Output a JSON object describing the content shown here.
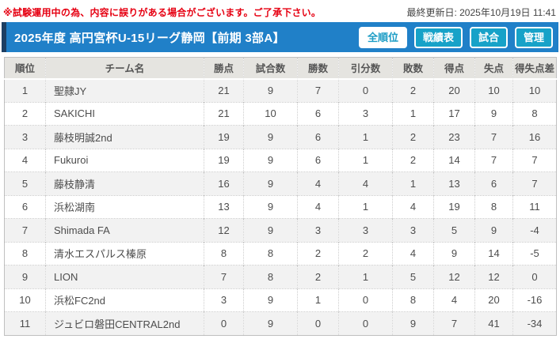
{
  "notice": {
    "text": "※試験運用中の為、内容に誤りがある場合がございます。ご了承下さい。"
  },
  "last_updated": {
    "label": "最終更新日: 2025年10月19日 11:41"
  },
  "header": {
    "title": "2025年度 高円宮杯U-15リーグ静岡【前期 3部A】",
    "buttons": [
      {
        "label": "全順位",
        "active": true
      },
      {
        "label": "戦績表",
        "active": false
      },
      {
        "label": "試合",
        "active": false
      },
      {
        "label": "管理",
        "active": false
      }
    ]
  },
  "colors": {
    "title_bar": "#2080c8",
    "title_bar_accent": "#1c3f63",
    "button_bg": "#17a2c8",
    "active_button_text": "#1b9cc5",
    "notice_red": "#e60012",
    "header_row_bg": "#e5e4e0",
    "stripe_row_bg": "#f2f2f2"
  },
  "table": {
    "columns": [
      "順位",
      "チーム名",
      "勝点",
      "試合数",
      "勝数",
      "引分数",
      "敗数",
      "得点",
      "失点",
      "得失点差"
    ],
    "rows": [
      {
        "rank": 1,
        "team": "聖隷JY",
        "points": 21,
        "played": 9,
        "wins": 7,
        "draws": 0,
        "losses": 2,
        "goals_for": 20,
        "goals_against": 10,
        "goal_diff": 10
      },
      {
        "rank": 2,
        "team": "SAKICHI",
        "points": 21,
        "played": 10,
        "wins": 6,
        "draws": 3,
        "losses": 1,
        "goals_for": 17,
        "goals_against": 9,
        "goal_diff": 8
      },
      {
        "rank": 3,
        "team": "藤枝明誠2nd",
        "points": 19,
        "played": 9,
        "wins": 6,
        "draws": 1,
        "losses": 2,
        "goals_for": 23,
        "goals_against": 7,
        "goal_diff": 16
      },
      {
        "rank": 4,
        "team": "Fukuroi",
        "points": 19,
        "played": 9,
        "wins": 6,
        "draws": 1,
        "losses": 2,
        "goals_for": 14,
        "goals_against": 7,
        "goal_diff": 7
      },
      {
        "rank": 5,
        "team": "藤枝静清",
        "points": 16,
        "played": 9,
        "wins": 4,
        "draws": 4,
        "losses": 1,
        "goals_for": 13,
        "goals_against": 6,
        "goal_diff": 7
      },
      {
        "rank": 6,
        "team": "浜松湖南",
        "points": 13,
        "played": 9,
        "wins": 4,
        "draws": 1,
        "losses": 4,
        "goals_for": 19,
        "goals_against": 8,
        "goal_diff": 11
      },
      {
        "rank": 7,
        "team": "Shimada FA",
        "points": 12,
        "played": 9,
        "wins": 3,
        "draws": 3,
        "losses": 3,
        "goals_for": 5,
        "goals_against": 9,
        "goal_diff": -4
      },
      {
        "rank": 8,
        "team": "清水エスパルス榛原",
        "points": 8,
        "played": 8,
        "wins": 2,
        "draws": 2,
        "losses": 4,
        "goals_for": 9,
        "goals_against": 14,
        "goal_diff": -5
      },
      {
        "rank": 9,
        "team": "LION",
        "points": 7,
        "played": 8,
        "wins": 2,
        "draws": 1,
        "losses": 5,
        "goals_for": 12,
        "goals_against": 12,
        "goal_diff": 0
      },
      {
        "rank": 10,
        "team": "浜松FC2nd",
        "points": 3,
        "played": 9,
        "wins": 1,
        "draws": 0,
        "losses": 8,
        "goals_for": 4,
        "goals_against": 20,
        "goal_diff": -16
      },
      {
        "rank": 11,
        "team": "ジュビロ磐田CENTRAL2nd",
        "points": 0,
        "played": 9,
        "wins": 0,
        "draws": 0,
        "losses": 9,
        "goals_for": 7,
        "goals_against": 41,
        "goal_diff": -34
      }
    ]
  }
}
